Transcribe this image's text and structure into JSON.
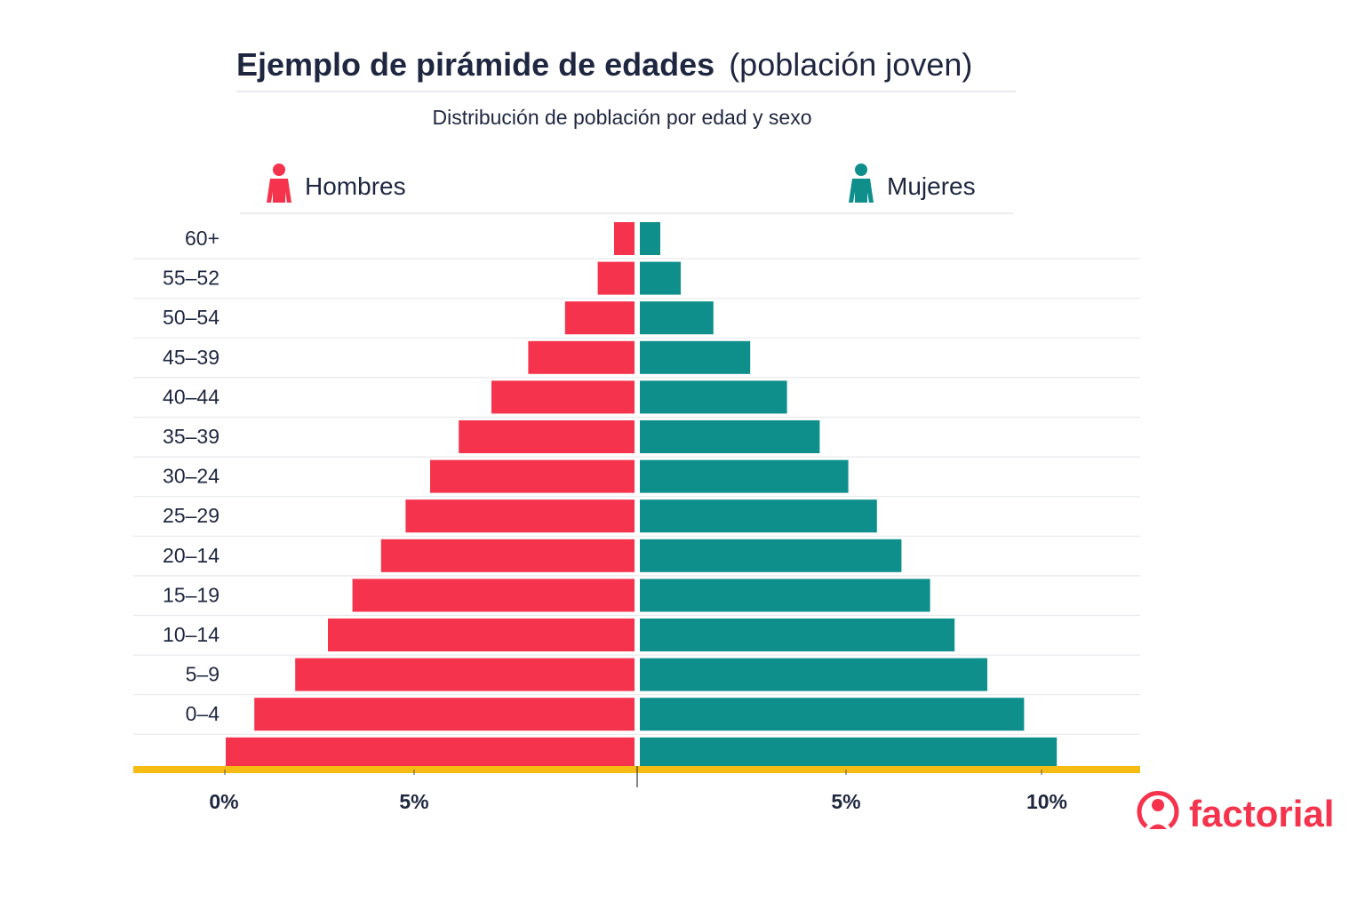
{
  "chart_data": {
    "type": "bar",
    "orientation": "horizontal-pyramid",
    "title": "Ejemplo de pirámide de edades",
    "title_suffix": "(población joven)",
    "subtitle": "Distribución de población por edad y sexo",
    "categories": [
      "60+",
      "55–52",
      "50–54",
      "45–39",
      "40–44",
      "35–39",
      "30–24",
      "25–29",
      "20–14",
      "15–19",
      "10–14",
      "5–9",
      "0–4",
      ""
    ],
    "series": [
      {
        "name": "Hombres",
        "side": "left",
        "color": "#f5334d",
        "values": [
          0.5,
          0.9,
          1.7,
          2.6,
          3.5,
          4.3,
          5.0,
          5.6,
          6.2,
          6.9,
          7.5,
          8.3,
          9.3,
          10.0
        ]
      },
      {
        "name": "Mujeres",
        "side": "right",
        "color": "#0f8f8c",
        "values": [
          0.5,
          1.0,
          1.8,
          2.7,
          3.6,
          4.4,
          5.1,
          5.8,
          6.4,
          7.1,
          7.7,
          8.5,
          9.4,
          10.2
        ]
      }
    ],
    "x_ticks_left": [
      "0%",
      "5%"
    ],
    "x_ticks_right": [
      "5%",
      "10%"
    ],
    "xlabel": "",
    "ylabel": "",
    "unit": "%",
    "grid": true,
    "legend_placement": "top",
    "axis_color": "#f5bd14"
  },
  "brand": {
    "name": "factorial",
    "color": "#f5334d"
  }
}
